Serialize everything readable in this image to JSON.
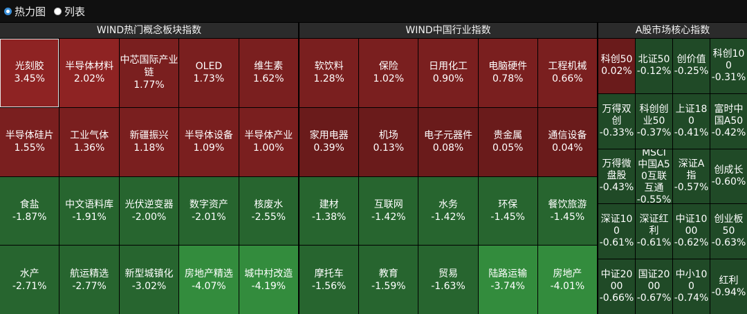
{
  "view_toggle": {
    "options": [
      {
        "label": "热力图",
        "selected": true
      },
      {
        "label": "列表",
        "selected": false
      }
    ]
  },
  "colors": {
    "up_strong": "#8e2323",
    "up_mid": "#7a1f1f",
    "up_weak": "#6a1b1b",
    "down_weak": "#204a27",
    "down_mid": "#27652f",
    "down_strong": "#338c3d"
  },
  "concept_panel": {
    "title": "WIND热门概念板块指数",
    "rows": [
      [
        {
          "name": "光刻胶",
          "pct": "3.45%",
          "selected": true
        },
        {
          "name": "半导体材料",
          "pct": "2.02%"
        },
        {
          "name": "中芯国际产业链",
          "pct": "1.77%"
        },
        {
          "name": "OLED",
          "pct": "1.73%"
        },
        {
          "name": "维生素",
          "pct": "1.62%"
        }
      ],
      [
        {
          "name": "半导体硅片",
          "pct": "1.55%"
        },
        {
          "name": "工业气体",
          "pct": "1.36%"
        },
        {
          "name": "新疆振兴",
          "pct": "1.18%"
        },
        {
          "name": "半导体设备",
          "pct": "1.09%"
        },
        {
          "name": "半导体产业",
          "pct": "1.00%"
        }
      ],
      [
        {
          "name": "食盐",
          "pct": "-1.87%"
        },
        {
          "name": "中文语料库",
          "pct": "-1.91%"
        },
        {
          "name": "光伏逆变器",
          "pct": "-2.00%"
        },
        {
          "name": "数字资产",
          "pct": "-2.01%"
        },
        {
          "name": "核废水",
          "pct": "-2.55%"
        }
      ],
      [
        {
          "name": "水产",
          "pct": "-2.71%"
        },
        {
          "name": "航运精选",
          "pct": "-2.77%"
        },
        {
          "name": "新型城镇化",
          "pct": "-3.02%"
        },
        {
          "name": "房地产精选",
          "pct": "-4.07%"
        },
        {
          "name": "城中村改造",
          "pct": "-4.19%"
        }
      ]
    ]
  },
  "industry_panel": {
    "title": "WIND中国行业指数",
    "rows": [
      [
        {
          "name": "软饮料",
          "pct": "1.28%"
        },
        {
          "name": "保险",
          "pct": "1.02%"
        },
        {
          "name": "日用化工",
          "pct": "0.90%"
        },
        {
          "name": "电脑硬件",
          "pct": "0.78%"
        },
        {
          "name": "工程机械",
          "pct": "0.66%"
        }
      ],
      [
        {
          "name": "家用电器",
          "pct": "0.39%"
        },
        {
          "name": "机场",
          "pct": "0.13%"
        },
        {
          "name": "电子元器件",
          "pct": "0.08%"
        },
        {
          "name": "贵金属",
          "pct": "0.05%"
        },
        {
          "name": "通信设备",
          "pct": "0.04%"
        }
      ],
      [
        {
          "name": "建材",
          "pct": "-1.38%"
        },
        {
          "name": "互联网",
          "pct": "-1.42%"
        },
        {
          "name": "水务",
          "pct": "-1.42%"
        },
        {
          "name": "环保",
          "pct": "-1.45%"
        },
        {
          "name": "餐饮旅游",
          "pct": "-1.45%"
        }
      ],
      [
        {
          "name": "摩托车",
          "pct": "-1.56%"
        },
        {
          "name": "教育",
          "pct": "-1.59%"
        },
        {
          "name": "贸易",
          "pct": "-1.63%"
        },
        {
          "name": "陆路运输",
          "pct": "-3.74%"
        },
        {
          "name": "房地产",
          "pct": "-4.01%"
        }
      ]
    ]
  },
  "core_panel": {
    "title": "A股市场核心指数",
    "rows": [
      [
        {
          "name": "科创50",
          "pct": "0.02%"
        },
        {
          "name": "北证50",
          "pct": "-0.12%"
        },
        {
          "name": "创价值",
          "pct": "-0.25%"
        },
        {
          "name": "科创100",
          "pct": "-0.31%"
        }
      ],
      [
        {
          "name": "万得双创",
          "pct": "-0.33%"
        },
        {
          "name": "科创创业50",
          "pct": "-0.37%"
        },
        {
          "name": "上证180",
          "pct": "-0.41%"
        },
        {
          "name": "富时中国A50",
          "pct": "-0.42%"
        }
      ],
      [
        {
          "name": "万得微盘股",
          "pct": "-0.43%"
        },
        {
          "name": "MSCI中国A50互联互通",
          "pct": "-0.55%"
        },
        {
          "name": "深证A指",
          "pct": "-0.57%"
        },
        {
          "name": "创成长",
          "pct": "-0.60%"
        }
      ],
      [
        {
          "name": "深证100",
          "pct": "-0.61%"
        },
        {
          "name": "深证红利",
          "pct": "-0.61%"
        },
        {
          "name": "中证1000",
          "pct": "-0.62%"
        },
        {
          "name": "创业板50",
          "pct": "-0.63%"
        }
      ],
      [
        {
          "name": "中证2000",
          "pct": "-0.66%"
        },
        {
          "name": "国证2000",
          "pct": "-0.67%"
        },
        {
          "name": "中小100",
          "pct": "-0.74%"
        },
        {
          "name": "红利",
          "pct": "-0.94%"
        }
      ]
    ]
  }
}
